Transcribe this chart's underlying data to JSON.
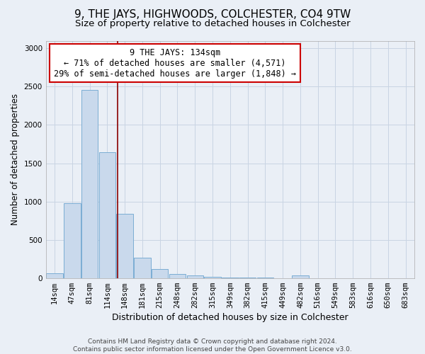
{
  "title": "9, THE JAYS, HIGHWOODS, COLCHESTER, CO4 9TW",
  "subtitle": "Size of property relative to detached houses in Colchester",
  "xlabel": "Distribution of detached houses by size in Colchester",
  "ylabel": "Number of detached properties",
  "categories": [
    "14sqm",
    "47sqm",
    "81sqm",
    "114sqm",
    "148sqm",
    "181sqm",
    "215sqm",
    "248sqm",
    "282sqm",
    "315sqm",
    "349sqm",
    "382sqm",
    "415sqm",
    "449sqm",
    "482sqm",
    "516sqm",
    "549sqm",
    "583sqm",
    "616sqm",
    "650sqm",
    "683sqm"
  ],
  "values": [
    60,
    975,
    2460,
    1640,
    840,
    270,
    120,
    55,
    35,
    20,
    10,
    5,
    5,
    0,
    30,
    0,
    0,
    0,
    0,
    0,
    0
  ],
  "bar_color": "#c9d9ec",
  "bar_edge_color": "#7badd4",
  "grid_color": "#c8d4e3",
  "background_color": "#eaeff6",
  "vline_color": "#8b0000",
  "annotation_text": "9 THE JAYS: 134sqm\n← 71% of detached houses are smaller (4,571)\n29% of semi-detached houses are larger (1,848) →",
  "annotation_box_color": "white",
  "annotation_box_edge_color": "#cc0000",
  "footer_line1": "Contains HM Land Registry data © Crown copyright and database right 2024.",
  "footer_line2": "Contains public sector information licensed under the Open Government Licence v3.0.",
  "ylim": [
    0,
    3100
  ],
  "title_fontsize": 11,
  "subtitle_fontsize": 9.5,
  "xlabel_fontsize": 9,
  "ylabel_fontsize": 8.5,
  "tick_fontsize": 7.5,
  "annotation_fontsize": 8.5,
  "footer_fontsize": 6.5
}
